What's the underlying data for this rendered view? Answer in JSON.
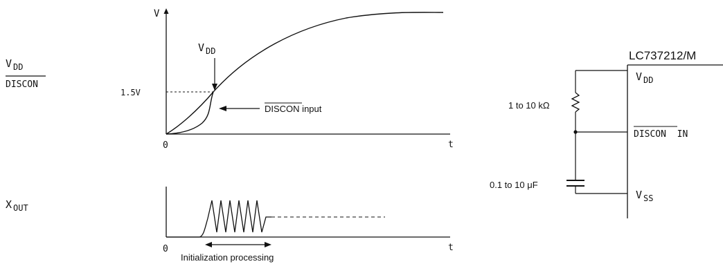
{
  "timing": {
    "vdd_discon_label": {
      "main": "V",
      "sub": "DD",
      "second": "DISCON"
    },
    "xout_label": {
      "main": "X",
      "sub": "OUT"
    },
    "axis": {
      "v_label": "V",
      "t_label": "t",
      "origin_label": "0",
      "level_label": "1.5V"
    },
    "vdd_curve_label": {
      "main": "V",
      "sub": "DD"
    },
    "discon_input_label": {
      "overbar": "DISCON",
      "rest": " input"
    },
    "xout_axis": {
      "t_label": "t",
      "origin_label": "0"
    },
    "init_label": "Initialization processing"
  },
  "schematic": {
    "chip_name": "LC737212/M",
    "pins": {
      "vdd": {
        "main": "V",
        "sub": "DD"
      },
      "discon": {
        "overbar": "DISCON",
        "rest": "  IN"
      },
      "vss": {
        "main": "V",
        "sub": "SS"
      }
    },
    "resistor_label": "1 to 10 kΩ",
    "capacitor_label": "0.1 to 10 μF"
  }
}
